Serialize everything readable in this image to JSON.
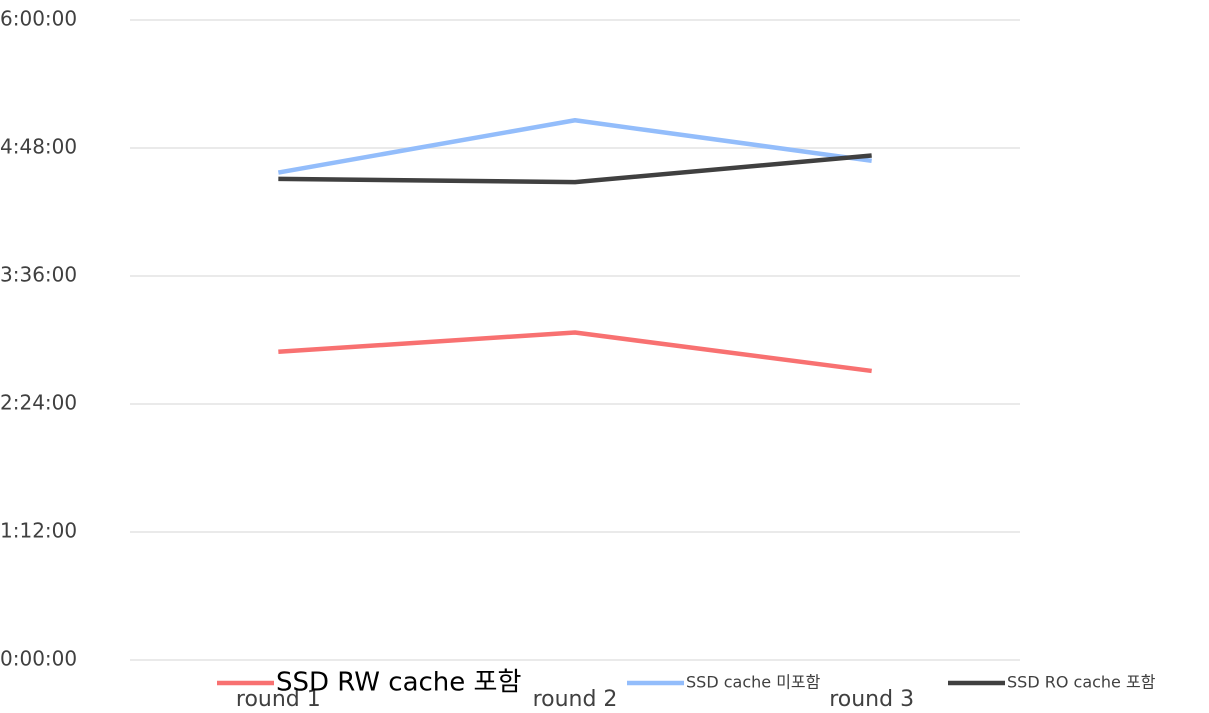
{
  "chart_data": {
    "type": "line",
    "categories": [
      "round 1",
      "round 2",
      "round 3"
    ],
    "series": [
      {
        "name": "SSD RW cache 포함",
        "color": "#f87171",
        "values": [
          2.89,
          3.07,
          2.71
        ]
      },
      {
        "name": "SSD cache 미포함",
        "color": "#93bdfb",
        "values": [
          4.57,
          5.06,
          4.68
        ]
      },
      {
        "name": "SSD RO cache 포함",
        "color": "#404040",
        "values": [
          4.51,
          4.48,
          4.73
        ]
      }
    ],
    "ylim": [
      0,
      6
    ],
    "yticks": [
      {
        "value": 0,
        "label": "0:00:00"
      },
      {
        "value": 1.2,
        "label": "1:12:00"
      },
      {
        "value": 2.4,
        "label": "2:24:00"
      },
      {
        "value": 3.6,
        "label": "3:36:00"
      },
      {
        "value": 4.8,
        "label": "4:48:00"
      },
      {
        "value": 6,
        "label": "6:00:00"
      }
    ],
    "grid": true,
    "legend": "bottom"
  }
}
